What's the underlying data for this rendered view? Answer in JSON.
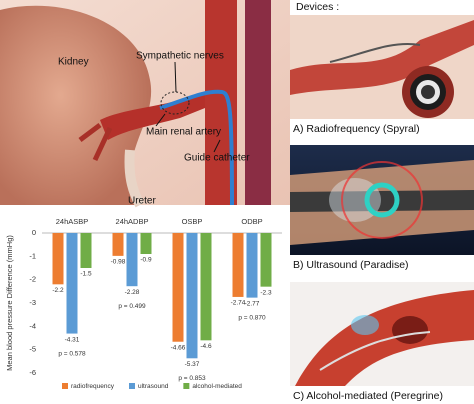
{
  "devices_heading": "Devices :",
  "anatomy_labels": [
    "Kidney",
    "Sympathetic nerves",
    "Main renal artery",
    "Guide catheter",
    "Ureter"
  ],
  "panels": [
    {
      "caption": "A) Radiofrequency (Spyral)"
    },
    {
      "caption": "B) Ultrasound (Paradise)"
    },
    {
      "caption": "C) Alcohol-mediated (Peregrine)"
    }
  ],
  "chart_data": {
    "type": "bar",
    "categories": [
      "24hASBP",
      "24hADBP",
      "OSBP",
      "ODBP"
    ],
    "series": [
      {
        "name": "radiofrequency",
        "color": "#ed7d31",
        "values": [
          -2.2,
          -0.98,
          -4.66,
          -2.74
        ]
      },
      {
        "name": "ultrasound",
        "color": "#5b9bd5",
        "values": [
          -4.31,
          -2.28,
          -5.37,
          -2.77
        ]
      },
      {
        "name": "alcohol-mediated",
        "color": "#70ad47",
        "values": [
          -1.5,
          -0.9,
          -4.6,
          -2.3
        ]
      }
    ],
    "y_label": "Mean blood pressure Difference (mmHg)",
    "annotations": [
      "p = 0.578",
      "p = 0.499",
      "p = 0.853",
      "p = 0.870"
    ],
    "ylim": [
      -6,
      0
    ],
    "yticks": [
      0,
      -1,
      -2,
      -3,
      -4,
      -5,
      -6
    ],
    "grid": false,
    "legend": "bottom"
  }
}
